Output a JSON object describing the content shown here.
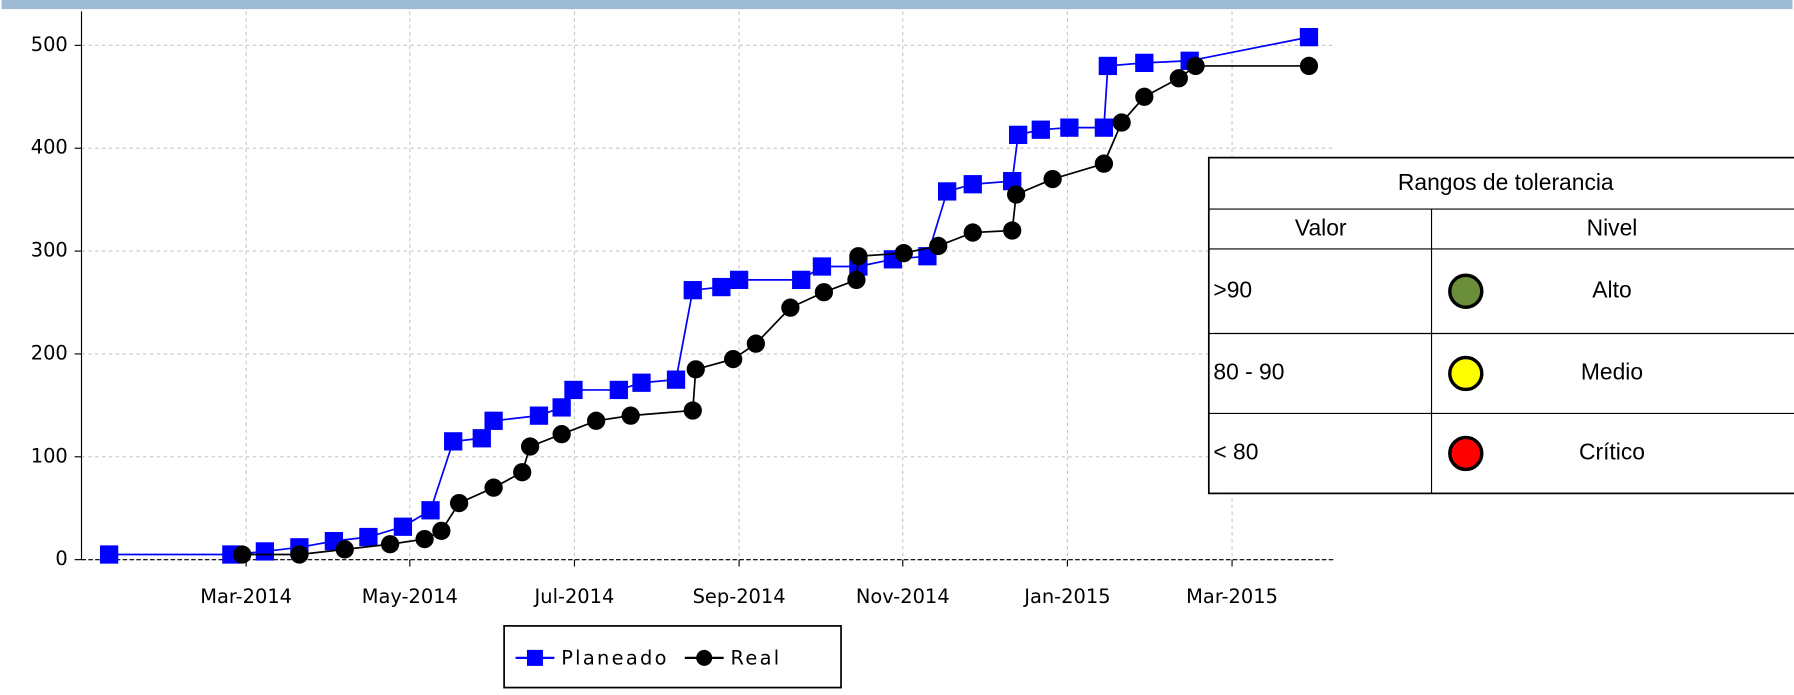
{
  "chart_data": {
    "type": "line",
    "xlim": [
      2014.0,
      2015.272
    ],
    "ylim": [
      0,
      533
    ],
    "xticks": [
      {
        "value": 2014.167,
        "label": "Mar-2014"
      },
      {
        "value": 2014.333,
        "label": "May-2014"
      },
      {
        "value": 2014.5,
        "label": "Jul-2014"
      },
      {
        "value": 2014.667,
        "label": "Sep-2014"
      },
      {
        "value": 2014.833,
        "label": "Nov-2014"
      },
      {
        "value": 2015.0,
        "label": "Jan-2015"
      },
      {
        "value": 2015.167,
        "label": "Mar-2015"
      }
    ],
    "yticks": [
      0,
      100,
      200,
      300,
      400,
      500
    ],
    "grid": true,
    "series": [
      {
        "name": "Planeado",
        "color": "#0000ff",
        "marker": "square",
        "x": [
          2014.028,
          2014.152,
          2014.186,
          2014.221,
          2014.256,
          2014.291,
          2014.326,
          2014.354,
          2014.377,
          2014.406,
          2014.418,
          2014.464,
          2014.487,
          2014.499,
          2014.545,
          2014.568,
          2014.603,
          2014.62,
          2014.649,
          2014.667,
          2014.73,
          2014.751,
          2014.788,
          2014.823,
          2014.858,
          2014.878,
          2014.904,
          2014.944,
          2014.95,
          2014.973,
          2015.002,
          2015.037,
          2015.041,
          2015.078,
          2015.124,
          2015.245
        ],
        "values": [
          5,
          5,
          8,
          12,
          18,
          22,
          32,
          48,
          115,
          118,
          135,
          140,
          148,
          165,
          165,
          172,
          175,
          262,
          265,
          272,
          272,
          285,
          285,
          292,
          295,
          358,
          365,
          368,
          413,
          418,
          420,
          420,
          480,
          483,
          485,
          508
        ]
      },
      {
        "name": "Real",
        "color": "#000000",
        "marker": "circle",
        "x": [
          2014.163,
          2014.221,
          2014.267,
          2014.313,
          2014.348,
          2014.365,
          2014.383,
          2014.418,
          2014.447,
          2014.455,
          2014.487,
          2014.522,
          2014.557,
          2014.62,
          2014.623,
          2014.661,
          2014.684,
          2014.719,
          2014.753,
          2014.786,
          2014.788,
          2014.834,
          2014.869,
          2014.904,
          2014.944,
          2014.948,
          2014.985,
          2015.037,
          2015.055,
          2015.078,
          2015.113,
          2015.13,
          2015.245
        ],
        "values": [
          5,
          5,
          10,
          15,
          20,
          28,
          55,
          70,
          85,
          110,
          122,
          135,
          140,
          145,
          185,
          195,
          210,
          245,
          260,
          272,
          295,
          298,
          305,
          318,
          320,
          355,
          370,
          385,
          425,
          450,
          468,
          480,
          480
        ]
      }
    ]
  },
  "tolerance_table": {
    "title": "Rangos de tolerancia",
    "headers": [
      "Valor",
      "Nivel"
    ],
    "rows": [
      {
        "value": ">90",
        "color": "#6b8e3a",
        "level": "Alto"
      },
      {
        "value": "80 - 90",
        "color": "#ffff00",
        "level": "Medio"
      },
      {
        "value": "< 80",
        "color": "#ff0000",
        "level": "Crítico"
      }
    ]
  }
}
